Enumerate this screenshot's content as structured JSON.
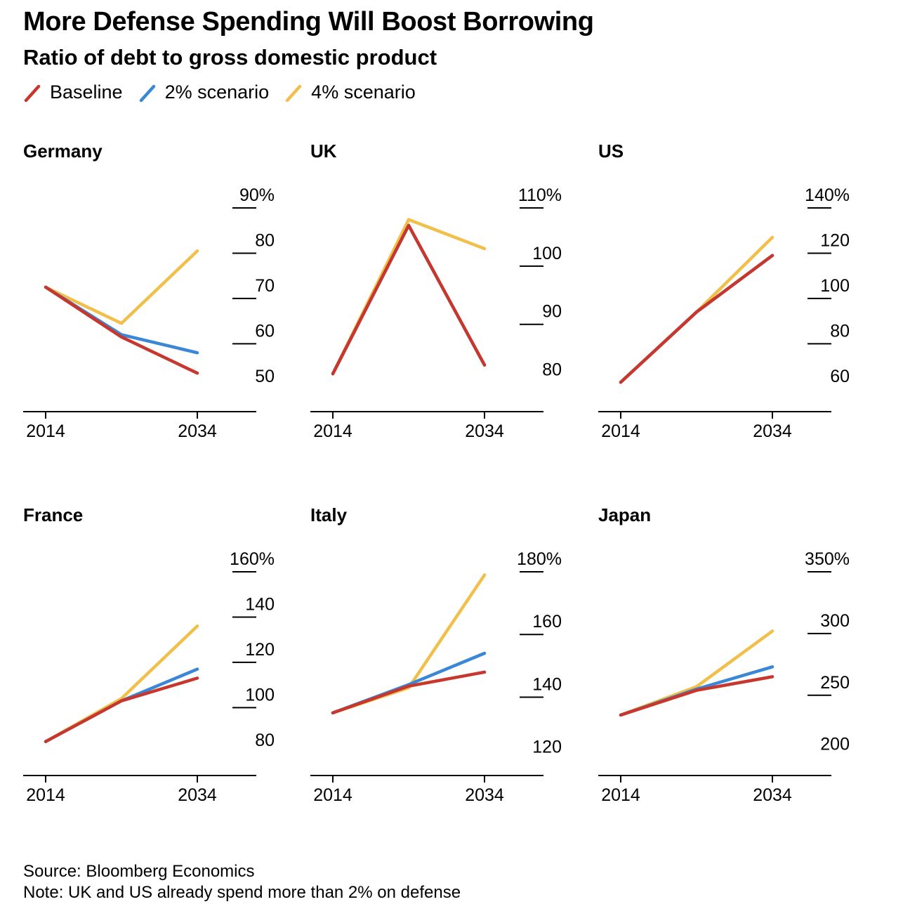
{
  "header": {
    "title": "More Defense Spending Will Boost Borrowing",
    "subtitle": "Ratio of debt to gross domestic product"
  },
  "legend": [
    {
      "label": "Baseline",
      "color": "#c8372d"
    },
    {
      "label": "2% scenario",
      "color": "#3a87d6"
    },
    {
      "label": "4% scenario",
      "color": "#f0c04a"
    }
  ],
  "footer": {
    "source": "Source: Bloomberg Economics",
    "note": "Note: UK and US already spend more than 2% on defense"
  },
  "chart_data": [
    {
      "type": "line",
      "title": "Germany",
      "x": [
        2014,
        2024,
        2034
      ],
      "x_tick_labels": [
        "2014",
        "2034"
      ],
      "ylim": [
        45,
        90
      ],
      "y_ticks": [
        50,
        60,
        70,
        80,
        90
      ],
      "y_tick_labels": [
        "50",
        "60",
        "70",
        "80",
        "90%"
      ],
      "series": [
        {
          "name": "4% scenario",
          "color": "#f0c04a",
          "values": [
            72.5,
            64.5,
            80.5
          ]
        },
        {
          "name": "2% scenario",
          "color": "#3a87d6",
          "values": [
            72.5,
            62,
            58
          ]
        },
        {
          "name": "Baseline",
          "color": "#c8372d",
          "values": [
            72.5,
            61.5,
            53.5
          ]
        }
      ]
    },
    {
      "type": "line",
      "title": "UK",
      "x": [
        2014,
        2024,
        2034
      ],
      "x_tick_labels": [
        "2014",
        "2034"
      ],
      "ylim": [
        75,
        110
      ],
      "y_ticks": [
        80,
        90,
        100,
        110
      ],
      "y_tick_labels": [
        "80",
        "90",
        "100",
        "110%"
      ],
      "series": [
        {
          "name": "4% scenario",
          "color": "#f0c04a",
          "values": [
            81.5,
            108,
            103
          ]
        },
        {
          "name": "2% scenario",
          "color": "#3a87d6",
          "values": [
            81.5,
            107,
            83
          ]
        },
        {
          "name": "Baseline",
          "color": "#c8372d",
          "values": [
            81.5,
            107,
            83
          ]
        }
      ]
    },
    {
      "type": "line",
      "title": "US",
      "x": [
        2014,
        2024,
        2034
      ],
      "x_tick_labels": [
        "2014",
        "2034"
      ],
      "ylim": [
        50,
        140
      ],
      "y_ticks": [
        60,
        80,
        100,
        120,
        140
      ],
      "y_tick_labels": [
        "60",
        "80",
        "100",
        "120",
        "140%"
      ],
      "series": [
        {
          "name": "4% scenario",
          "color": "#f0c04a",
          "values": [
            63,
            94,
            127
          ]
        },
        {
          "name": "2% scenario",
          "color": "#3a87d6",
          "values": [
            63,
            94,
            119
          ]
        },
        {
          "name": "Baseline",
          "color": "#c8372d",
          "values": [
            63,
            94,
            119
          ]
        }
      ]
    },
    {
      "type": "line",
      "title": "France",
      "x": [
        2014,
        2024,
        2034
      ],
      "x_tick_labels": [
        "2014",
        "2034"
      ],
      "ylim": [
        70,
        160
      ],
      "y_ticks": [
        80,
        100,
        120,
        140,
        160
      ],
      "y_tick_labels": [
        "80",
        "100",
        "120",
        "140",
        "160%"
      ],
      "series": [
        {
          "name": "4% scenario",
          "color": "#f0c04a",
          "values": [
            85,
            104,
            136
          ]
        },
        {
          "name": "2% scenario",
          "color": "#3a87d6",
          "values": [
            85,
            103,
            117
          ]
        },
        {
          "name": "Baseline",
          "color": "#c8372d",
          "values": [
            85,
            103,
            113
          ]
        }
      ]
    },
    {
      "type": "line",
      "title": "Italy",
      "x": [
        2014,
        2024,
        2034
      ],
      "x_tick_labels": [
        "2014",
        "2034"
      ],
      "ylim": [
        115,
        180
      ],
      "y_ticks": [
        120,
        140,
        160,
        180
      ],
      "y_tick_labels": [
        "120",
        "140",
        "160",
        "180%"
      ],
      "series": [
        {
          "name": "4% scenario",
          "color": "#f0c04a",
          "values": [
            135,
            143,
            179
          ]
        },
        {
          "name": "2% scenario",
          "color": "#3a87d6",
          "values": [
            135,
            144,
            154
          ]
        },
        {
          "name": "Baseline",
          "color": "#c8372d",
          "values": [
            135,
            143.5,
            148
          ]
        }
      ]
    },
    {
      "type": "line",
      "title": "Japan",
      "x": [
        2014,
        2024,
        2034
      ],
      "x_tick_labels": [
        "2014",
        "2034"
      ],
      "ylim": [
        185,
        350
      ],
      "y_ticks": [
        200,
        250,
        300,
        350
      ],
      "y_tick_labels": [
        "200",
        "250",
        "300",
        "350%"
      ],
      "series": [
        {
          "name": "4% scenario",
          "color": "#f0c04a",
          "values": [
            234,
            257,
            302
          ]
        },
        {
          "name": "2% scenario",
          "color": "#3a87d6",
          "values": [
            234,
            255,
            273
          ]
        },
        {
          "name": "Baseline",
          "color": "#c8372d",
          "values": [
            234,
            254,
            265
          ]
        }
      ]
    }
  ]
}
